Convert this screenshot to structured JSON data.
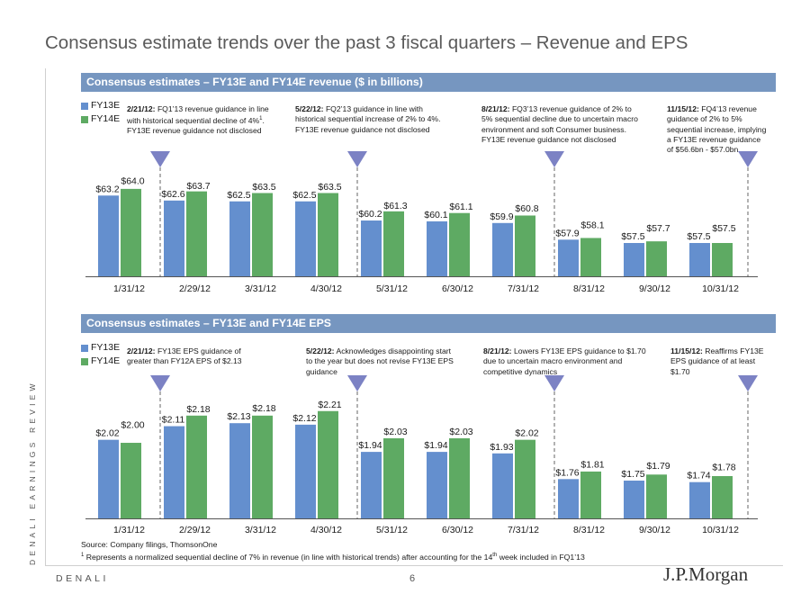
{
  "page_title": "Consensus estimate trends over the past 3 fiscal quarters – Revenue and EPS",
  "sidebar_text": "DENALI EARNINGS REVIEW",
  "footer": {
    "brand": "DENALI",
    "page_number": "6",
    "logo": "J.P.Morgan"
  },
  "footnotes": {
    "source": "Source: Company filings, ThomsonOne",
    "note_marker": "1",
    "note_text_a": " Represents a normalized sequential decline of 7% in revenue (in line with historical trends) after accounting for the 14",
    "note_sup": "th",
    "note_text_b": " week included in FQ1’13"
  },
  "colors": {
    "fy13": "#648fce",
    "fy14": "#5eaa63",
    "header_bg": "#7696c0",
    "marker": "#7c82c4"
  },
  "legend": {
    "fy13": "FY13E",
    "fy14": "FY14E"
  },
  "chart_data": [
    {
      "type": "bar",
      "title": "Consensus estimates – FY13E and FY14E revenue ($ in billions)",
      "categories": [
        "1/31/12",
        "2/29/12",
        "3/31/12",
        "4/30/12",
        "5/31/12",
        "6/30/12",
        "7/31/12",
        "8/31/12",
        "9/30/12",
        "10/31/12"
      ],
      "series": [
        {
          "name": "FY13E",
          "values": [
            63.2,
            62.6,
            62.5,
            62.5,
            60.2,
            60.1,
            59.9,
            57.9,
            57.5,
            57.5
          ],
          "labels": [
            "$63.2",
            "$62.6",
            "$62.5",
            "$62.5",
            "$60.2",
            "$60.1",
            "$59.9",
            "$57.9",
            "$57.5",
            "$57.5"
          ]
        },
        {
          "name": "FY14E",
          "values": [
            64.0,
            63.7,
            63.5,
            63.5,
            61.3,
            61.1,
            60.8,
            58.1,
            57.7,
            57.5
          ],
          "labels": [
            "$64.0",
            "$63.7",
            "$63.5",
            "$63.5",
            "$61.3",
            "$61.1",
            "$60.8",
            "$58.1",
            "$57.7",
            "$57.5"
          ]
        }
      ],
      "ylim": [
        53.5,
        65.5
      ],
      "guidance_markers_after": [
        "1/31/12",
        "4/30/12",
        "7/31/12",
        "10/31/12"
      ],
      "annotations": [
        {
          "date": "2/21/12:",
          "text": "FQ1’13 revenue guidance in line with historical sequential decline of 4%",
          "sup": "1",
          "text2": ". FY13E revenue guidance not disclosed"
        },
        {
          "date": "5/22/12:",
          "text": "FQ2’13 guidance in line with historical sequential increase of 2% to 4%. FY13E revenue guidance not disclosed"
        },
        {
          "date": "8/21/12:",
          "text": "FQ3’13 revenue guidance of 2% to 5% sequential decline due to uncertain macro environment and soft Consumer business. FY13E revenue guidance not disclosed"
        },
        {
          "date": "11/15/12:",
          "text": "FQ4’13 revenue guidance of 2% to 5% sequential increase, implying a FY13E revenue guidance of $56.6bn - $57.0bn"
        }
      ]
    },
    {
      "type": "bar",
      "title": "Consensus estimates – FY13E and FY14E EPS",
      "categories": [
        "1/31/12",
        "2/29/12",
        "3/31/12",
        "4/30/12",
        "5/31/12",
        "6/30/12",
        "7/31/12",
        "8/31/12",
        "9/30/12",
        "10/31/12"
      ],
      "series": [
        {
          "name": "FY13E",
          "values": [
            2.02,
            2.11,
            2.13,
            2.12,
            1.94,
            1.94,
            1.93,
            1.76,
            1.75,
            1.74
          ],
          "labels": [
            "$2.02",
            "$2.11",
            "$2.13",
            "$2.12",
            "$1.94",
            "$1.94",
            "$1.93",
            "$1.76",
            "$1.75",
            "$1.74"
          ]
        },
        {
          "name": "FY14E",
          "values": [
            2.0,
            2.18,
            2.18,
            2.21,
            2.03,
            2.03,
            2.02,
            1.81,
            1.79,
            1.78
          ],
          "labels": [
            "$2.00",
            "$2.18",
            "$2.18",
            "$2.21",
            "$2.03",
            "$2.03",
            "$2.02",
            "$1.81",
            "$1.79",
            "$1.78"
          ]
        }
      ],
      "ylim": [
        1.5,
        2.28
      ],
      "guidance_markers_after": [
        "1/31/12",
        "4/30/12",
        "7/31/12",
        "10/31/12"
      ],
      "annotations": [
        {
          "date": "2/21/12:",
          "text": "FY13E EPS guidance of greater than FY12A EPS of $2.13"
        },
        {
          "date": "5/22/12:",
          "text": "Acknowledges disappointing start to the year but does not revise FY13E EPS guidance"
        },
        {
          "date": "8/21/12:",
          "text": "Lowers FY13E EPS guidance to $1.70 due to uncertain macro environment and competitive dynamics"
        },
        {
          "date": "11/15/12:",
          "text": "Reaffirms FY13E EPS guidance of at least $1.70"
        }
      ]
    }
  ]
}
